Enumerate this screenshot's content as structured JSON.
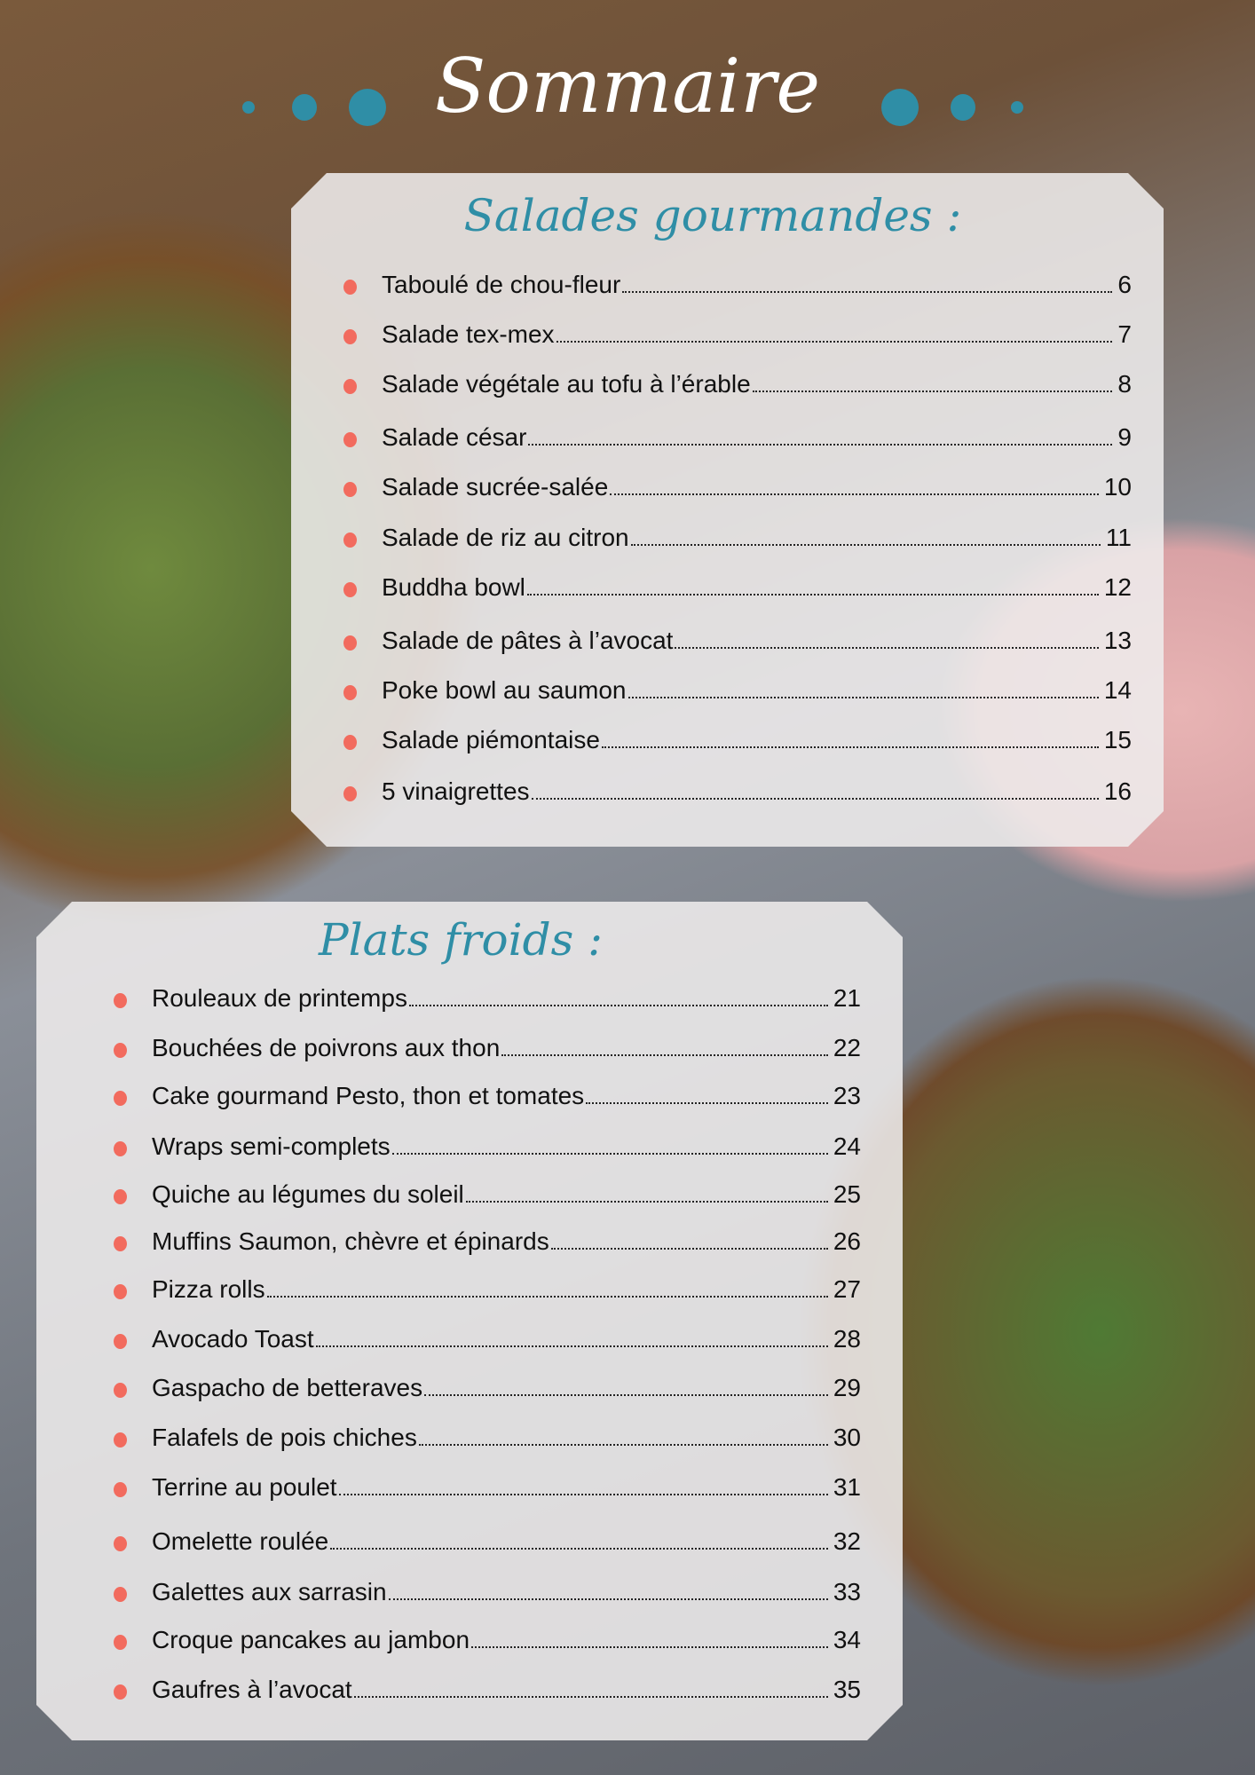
{
  "title": "Sommaire",
  "accent_color": "#2f8ea6",
  "bullet_color": "#f26b5e",
  "sections": [
    {
      "heading": "Salades gourmandes :",
      "items": [
        {
          "label": "Taboulé de chou-fleur",
          "page": "6"
        },
        {
          "label": "Salade tex-mex",
          "page": "7"
        },
        {
          "label": "Salade végétale au tofu à l’érable",
          "page": "8"
        },
        {
          "label": "Salade césar",
          "page": "9"
        },
        {
          "label": "Salade sucrée-salée",
          "page": "10"
        },
        {
          "label": "Salade de riz au citron",
          "page": "11"
        },
        {
          "label": "Buddha bowl",
          "page": "12"
        },
        {
          "label": "Salade de pâtes à l’avocat",
          "page": "13"
        },
        {
          "label": "Poke bowl au saumon",
          "page": "14"
        },
        {
          "label": "Salade piémontaise",
          "page": "15"
        },
        {
          "label": "5 vinaigrettes",
          "page": "16"
        }
      ]
    },
    {
      "heading": "Plats froids :",
      "items": [
        {
          "label": "Rouleaux de printemps",
          "page": "21"
        },
        {
          "label": "Bouchées de poivrons aux thon",
          "page": "22"
        },
        {
          "label": "Cake gourmand Pesto, thon et tomates",
          "page": "23"
        },
        {
          "label": "Wraps semi-complets",
          "page": "24"
        },
        {
          "label": "Quiche au légumes du soleil",
          "page": "25"
        },
        {
          "label": "Muffins Saumon, chèvre et épinards",
          "page": "26"
        },
        {
          "label": "Pizza rolls",
          "page": "27"
        },
        {
          "label": "Avocado Toast",
          "page": "28"
        },
        {
          "label": "Gaspacho de betteraves",
          "page": "29"
        },
        {
          "label": "Falafels de pois chiches",
          "page": "30"
        },
        {
          "label": "Terrine au poulet",
          "page": "31"
        },
        {
          "label": "Omelette roulée",
          "page": "32"
        },
        {
          "label": "Galettes aux sarrasin",
          "page": "33"
        },
        {
          "label": "Croque pancakes au jambon",
          "page": "34"
        },
        {
          "label": "Gaufres à l’avocat",
          "page": "35"
        }
      ]
    }
  ]
}
